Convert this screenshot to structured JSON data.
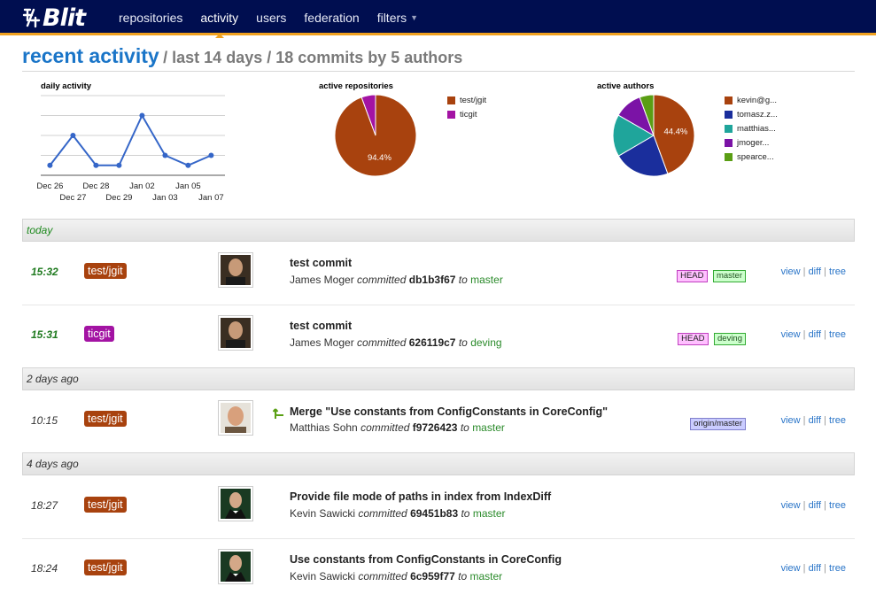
{
  "app": {
    "logo_text": "Blit"
  },
  "nav": [
    {
      "label": "repositories"
    },
    {
      "label": "activity"
    },
    {
      "label": "users"
    },
    {
      "label": "federation"
    },
    {
      "label": "filters"
    }
  ],
  "header": {
    "title": "recent activity",
    "subtitle": "/ last 14 days / 18 commits by 5 authors"
  },
  "daily_activity": {
    "title": "daily activity",
    "chart_data": {
      "type": "line",
      "x": [
        "Dec 26",
        "Dec 27",
        "Dec 28",
        "Dec 29",
        "Jan 02",
        "Jan 03",
        "Jan 05",
        "Jan 07"
      ],
      "values": [
        1,
        4,
        1,
        1,
        6,
        2,
        1,
        2
      ],
      "ylim": [
        0,
        8
      ],
      "grid": true,
      "color": "#3566c8"
    }
  },
  "active_repositories": {
    "title": "active repositories",
    "chart_data": {
      "type": "pie",
      "labels": [
        "test/jgit",
        "ticgit"
      ],
      "values": [
        94.4,
        5.6
      ],
      "colors": [
        "#a8420e",
        "#a313a3"
      ],
      "slice_labels": [
        "94.4%",
        ""
      ]
    }
  },
  "active_authors": {
    "title": "active authors",
    "chart_data": {
      "type": "pie",
      "labels": [
        "kevin@g...",
        "tomasz.z...",
        "matthias...",
        "jmoger...",
        "spearce..."
      ],
      "values": [
        44.4,
        22.2,
        16.7,
        11.1,
        5.6
      ],
      "colors": [
        "#a8420e",
        "#1a2e9c",
        "#1fa59b",
        "#7b13a6",
        "#5a9e14"
      ],
      "slice_labels": [
        "44.4%",
        "",
        "",
        "",
        ""
      ]
    }
  },
  "days": [
    {
      "label": "today",
      "commits": [
        {
          "time": "15:32",
          "repo": "test/jgit",
          "repo_color": "#a8420e",
          "message": "test commit",
          "author": "James Moger",
          "verb": "committed",
          "sha": "db1b3f67",
          "to": "to",
          "branch": "master",
          "refs": [
            {
              "label": "HEAD",
              "kind": "head"
            },
            {
              "label": "master",
              "kind": "branch"
            }
          ],
          "links": [
            "view",
            "diff",
            "tree"
          ]
        },
        {
          "time": "15:31",
          "repo": "ticgit",
          "repo_color": "#a313a3",
          "message": "test commit",
          "author": "James Moger",
          "verb": "committed",
          "sha": "626119c7",
          "to": "to",
          "branch": "deving",
          "refs": [
            {
              "label": "HEAD",
              "kind": "head"
            },
            {
              "label": "deving",
              "kind": "branch"
            }
          ],
          "links": [
            "view",
            "diff",
            "tree"
          ]
        }
      ]
    },
    {
      "label": "2 days ago",
      "commits": [
        {
          "time": "10:15",
          "repo": "test/jgit",
          "repo_color": "#a8420e",
          "message": "Merge \"Use constants from ConfigConstants in CoreConfig\"",
          "author": "Matthias Sohn",
          "verb": "committed",
          "sha": "f9726423",
          "to": "to",
          "branch": "master",
          "refs": [
            {
              "label": "origin/master",
              "kind": "remote"
            }
          ],
          "links": [
            "view",
            "diff",
            "tree"
          ],
          "merge_icon": "merge-arrow-icon"
        }
      ]
    },
    {
      "label": "4 days ago",
      "commits": [
        {
          "time": "18:27",
          "repo": "test/jgit",
          "repo_color": "#a8420e",
          "message": "Provide file mode of paths in index from IndexDiff",
          "author": "Kevin Sawicki",
          "verb": "committed",
          "sha": "69451b83",
          "to": "to",
          "branch": "master",
          "refs": [],
          "links": [
            "view",
            "diff",
            "tree"
          ]
        },
        {
          "time": "18:24",
          "repo": "test/jgit",
          "repo_color": "#a8420e",
          "message": "Use constants from ConfigConstants in CoreConfig",
          "author": "Kevin Sawicki",
          "verb": "committed",
          "sha": "6c959f77",
          "to": "to",
          "branch": "master",
          "refs": [],
          "links": [
            "view",
            "diff",
            "tree"
          ]
        }
      ]
    }
  ]
}
